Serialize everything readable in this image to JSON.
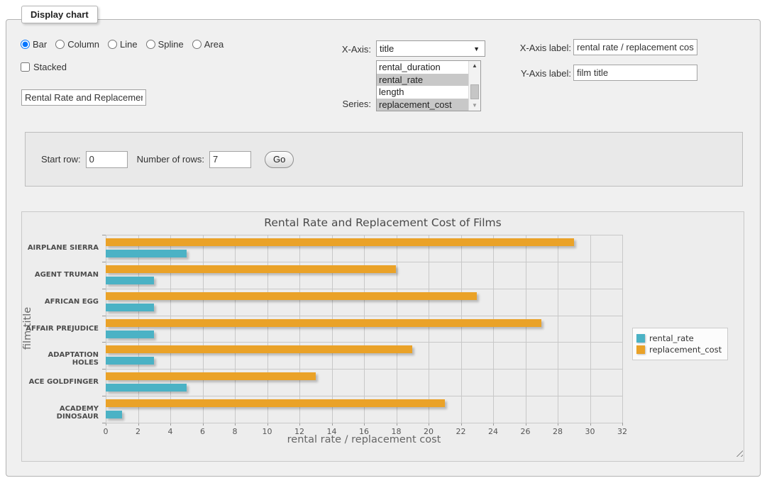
{
  "panel": {
    "legend": "Display chart"
  },
  "chart_types": {
    "options": [
      {
        "label": "Bar",
        "selected": true
      },
      {
        "label": "Column",
        "selected": false
      },
      {
        "label": "Line",
        "selected": false
      },
      {
        "label": "Spline",
        "selected": false
      },
      {
        "label": "Area",
        "selected": false
      }
    ]
  },
  "stacked": {
    "label": "Stacked",
    "checked": false
  },
  "chart_title_input": {
    "value": "Rental Rate and Replacement Cost of Films"
  },
  "x_axis_select": {
    "label": "X-Axis:",
    "value": "title",
    "arrow_icon": "▼"
  },
  "series_list": {
    "label": "Series:",
    "options": [
      {
        "label": "rental_duration",
        "selected": false
      },
      {
        "label": "rental_rate",
        "selected": true
      },
      {
        "label": "length",
        "selected": false
      },
      {
        "label": "replacement_cost",
        "selected": true
      }
    ],
    "scroll_up_icon": "▲",
    "scroll_down_icon": "▼"
  },
  "x_axis_label_field": {
    "label": "X-Axis label:",
    "value": "rental rate / replacement cost"
  },
  "y_axis_label_field": {
    "label": "Y-Axis label:",
    "value": "film title"
  },
  "row_panel": {
    "start_row_label": "Start row:",
    "start_row_value": "0",
    "number_of_rows_label": "Number of rows:",
    "number_of_rows_value": "7",
    "go_button": "Go"
  },
  "chart_data": {
    "type": "bar",
    "orientation": "horizontal",
    "title": "Rental Rate and Replacement Cost of Films",
    "xlabel": "rental rate / replacement cost",
    "ylabel": "film title",
    "categories": [
      "AIRPLANE SIERRA",
      "AGENT TRUMAN",
      "AFRICAN EGG",
      "AFFAIR PREJUDICE",
      "ADAPTATION HOLES",
      "ACE GOLDFINGER",
      "ACADEMY DINOSAUR"
    ],
    "series": [
      {
        "name": "rental_rate",
        "color": "#4bb2c5",
        "values": [
          4.99,
          2.99,
          2.99,
          2.99,
          2.99,
          4.99,
          0.99
        ]
      },
      {
        "name": "replacement_cost",
        "color": "#eaa228",
        "values": [
          28.99,
          17.99,
          22.99,
          26.99,
          18.99,
          12.99,
          20.99
        ]
      }
    ],
    "xlim": [
      0,
      32
    ],
    "xticks": [
      0,
      2,
      4,
      6,
      8,
      10,
      12,
      14,
      16,
      18,
      20,
      22,
      24,
      26,
      28,
      30,
      32
    ],
    "grid": true,
    "legend_position": "right",
    "colors": {
      "plot_background": "#ededed",
      "gridline": "#c8c8c8"
    }
  }
}
